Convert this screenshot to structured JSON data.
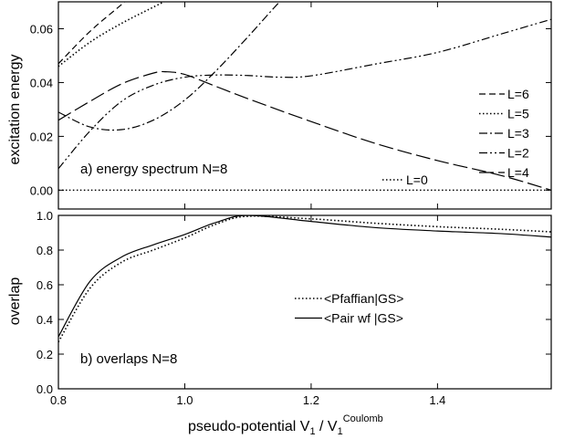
{
  "xlabel": "pseudo-potential V",
  "xlabel_sub1": "1",
  "xlabel_slash": " / V",
  "xlabel_sub2": "1",
  "xlabel_sup": "Coulomb",
  "chart_data": [
    {
      "type": "line",
      "panel_label": "a) energy spectrum N=8",
      "ylabel": "excitation energy",
      "xlim": [
        0.8,
        1.58
      ],
      "ylim": [
        -0.007,
        0.07
      ],
      "x_ticks": [
        0.8,
        1.0,
        1.2,
        1.4
      ],
      "y_ticks": [
        0.0,
        0.02,
        0.04,
        0.06
      ],
      "y_tick_labels": [
        "0.00",
        "0.02",
        "0.04",
        "0.06"
      ],
      "legend_position": "right",
      "series": [
        {
          "name": "L=6",
          "style": "dashed",
          "x": [
            0.8,
            0.85,
            0.9,
            0.95
          ],
          "y": [
            0.047,
            0.059,
            0.069,
            0.079
          ]
        },
        {
          "name": "L=5",
          "style": "dotted",
          "x": [
            0.8,
            0.85,
            0.9,
            0.95,
            1.0
          ],
          "y": [
            0.046,
            0.055,
            0.062,
            0.068,
            0.074
          ]
        },
        {
          "name": "L=3",
          "style": "dash-dot",
          "x": [
            0.8,
            0.85,
            0.9,
            0.95,
            1.0,
            1.05,
            1.1,
            1.15,
            1.2
          ],
          "y": [
            0.029,
            0.0235,
            0.0225,
            0.026,
            0.0335,
            0.0445,
            0.057,
            0.07,
            0.082
          ]
        },
        {
          "name": "L=2",
          "style": "dash-dot-dot",
          "x": [
            0.8,
            0.85,
            0.9,
            0.95,
            1.0,
            1.05,
            1.1,
            1.15,
            1.2,
            1.3,
            1.4,
            1.5,
            1.58
          ],
          "y": [
            0.008,
            0.022,
            0.033,
            0.039,
            0.042,
            0.0428,
            0.0426,
            0.042,
            0.0425,
            0.0468,
            0.0512,
            0.058,
            0.0635
          ]
        },
        {
          "name": "L=4",
          "style": "long-dash",
          "x": [
            0.8,
            0.85,
            0.9,
            0.95,
            0.97,
            1.0,
            1.05,
            1.1,
            1.2,
            1.3,
            1.4,
            1.5,
            1.58
          ],
          "y": [
            0.026,
            0.033,
            0.0395,
            0.0435,
            0.044,
            0.043,
            0.0385,
            0.034,
            0.0255,
            0.0175,
            0.011,
            0.0055,
            0.0
          ]
        },
        {
          "name": "L=0",
          "style": "dotted",
          "x": [
            0.8,
            1.58
          ],
          "y": [
            0.0,
            0.0
          ]
        }
      ]
    },
    {
      "type": "line",
      "panel_label": "b) overlaps N=8",
      "ylabel": "overlap",
      "xlim": [
        0.8,
        1.58
      ],
      "ylim": [
        0.0,
        1.0
      ],
      "x_ticks": [
        0.8,
        1.0,
        1.2,
        1.4
      ],
      "x_tick_labels": [
        "0.8",
        "1.0",
        "1.2",
        "1.4"
      ],
      "y_ticks": [
        0.0,
        0.2,
        0.4,
        0.6,
        0.8,
        1.0
      ],
      "y_tick_labels": [
        "0.0",
        "0.2",
        "0.4",
        "0.6",
        "0.8",
        "1.0"
      ],
      "legend_position": "center-right",
      "series": [
        {
          "name": "<Pfaffian|GS>",
          "style": "dotted",
          "x": [
            0.8,
            0.85,
            0.9,
            0.95,
            1.0,
            1.05,
            1.1,
            1.2,
            1.3,
            1.4,
            1.5,
            1.58
          ],
          "y": [
            0.27,
            0.58,
            0.73,
            0.8,
            0.87,
            0.95,
            0.995,
            0.98,
            0.955,
            0.935,
            0.92,
            0.905
          ]
        },
        {
          "name": "<Pair wf |GS>",
          "style": "solid",
          "x": [
            0.8,
            0.85,
            0.9,
            0.95,
            1.0,
            1.05,
            1.1,
            1.2,
            1.3,
            1.4,
            1.5,
            1.58
          ],
          "y": [
            0.3,
            0.62,
            0.76,
            0.83,
            0.89,
            0.96,
            1.0,
            0.965,
            0.93,
            0.91,
            0.895,
            0.875
          ]
        }
      ]
    }
  ]
}
